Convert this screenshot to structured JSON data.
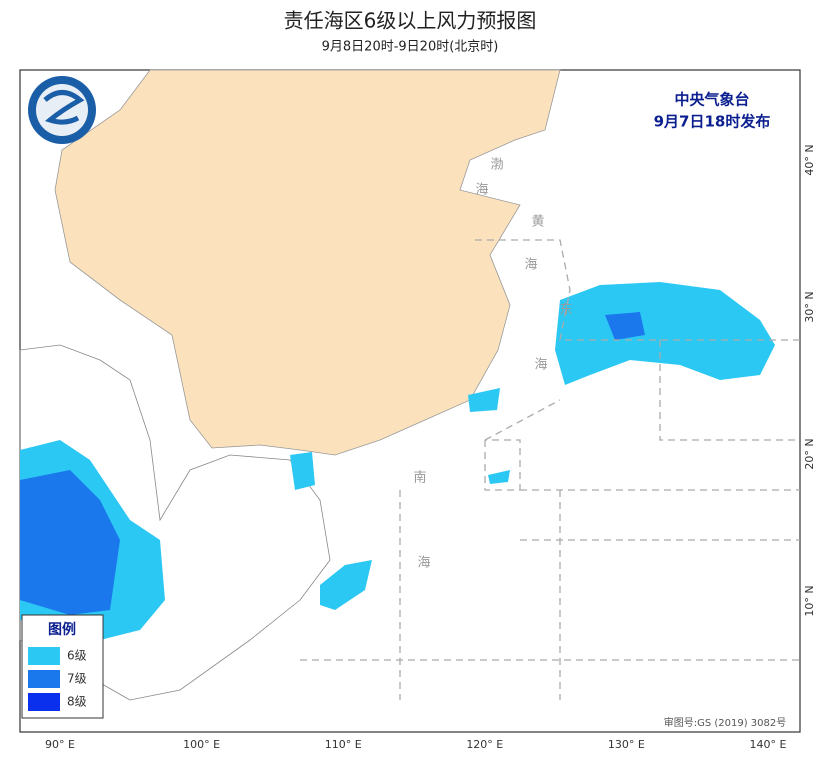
{
  "header": {
    "title": "责任海区6级以上风力预报图",
    "subtitle": "9月8日20时-9日20时(北京时)"
  },
  "agency": {
    "name": "中央气象台",
    "issued": "9月7日18时发布"
  },
  "sea_labels": [
    "渤",
    "海",
    "黄",
    "海",
    "东",
    "海",
    "南",
    "海"
  ],
  "legend": {
    "title": "图例",
    "items": [
      {
        "label": "6级",
        "color": "#2cc8f4"
      },
      {
        "label": "7级",
        "color": "#1a78ec"
      },
      {
        "label": "8级",
        "color": "#0a30ee"
      }
    ]
  },
  "longitude_labels": [
    "90° E",
    "100° E",
    "110° E",
    "120° E",
    "130° E",
    "140° E"
  ],
  "latitude_labels": [
    "40° N",
    "30° N",
    "20° N",
    "10° N"
  ],
  "map_number": "审图号:GS (2019) 3082号"
}
